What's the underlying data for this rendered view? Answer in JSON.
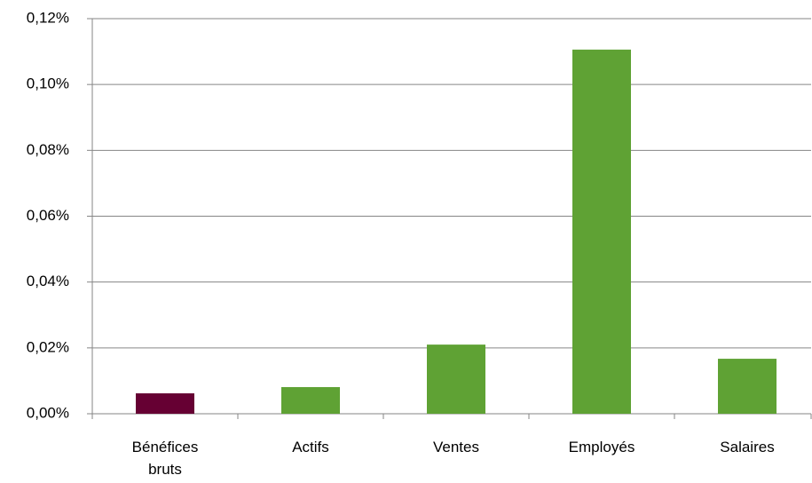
{
  "chart_data": {
    "type": "bar",
    "categories": [
      "Bénéfices bruts",
      "Actifs",
      "Ventes",
      "Employés",
      "Salaires"
    ],
    "values": [
      0.0062,
      0.0081,
      0.021,
      0.1106,
      0.0167
    ],
    "colors": [
      "#660033",
      "#5fa234",
      "#5fa234",
      "#5fa234",
      "#5fa234"
    ],
    "ylim": [
      0,
      0.12
    ],
    "yticks": [
      {
        "value": 0,
        "label": "0,00%"
      },
      {
        "value": 0.02,
        "label": "0,02%"
      },
      {
        "value": 0.04,
        "label": "0,04%"
      },
      {
        "value": 0.06,
        "label": "0,06%"
      },
      {
        "value": 0.08,
        "label": "0,08%"
      },
      {
        "value": 0.1,
        "label": "0,10%"
      },
      {
        "value": 0.12,
        "label": "0,12%"
      }
    ],
    "grid": true
  }
}
